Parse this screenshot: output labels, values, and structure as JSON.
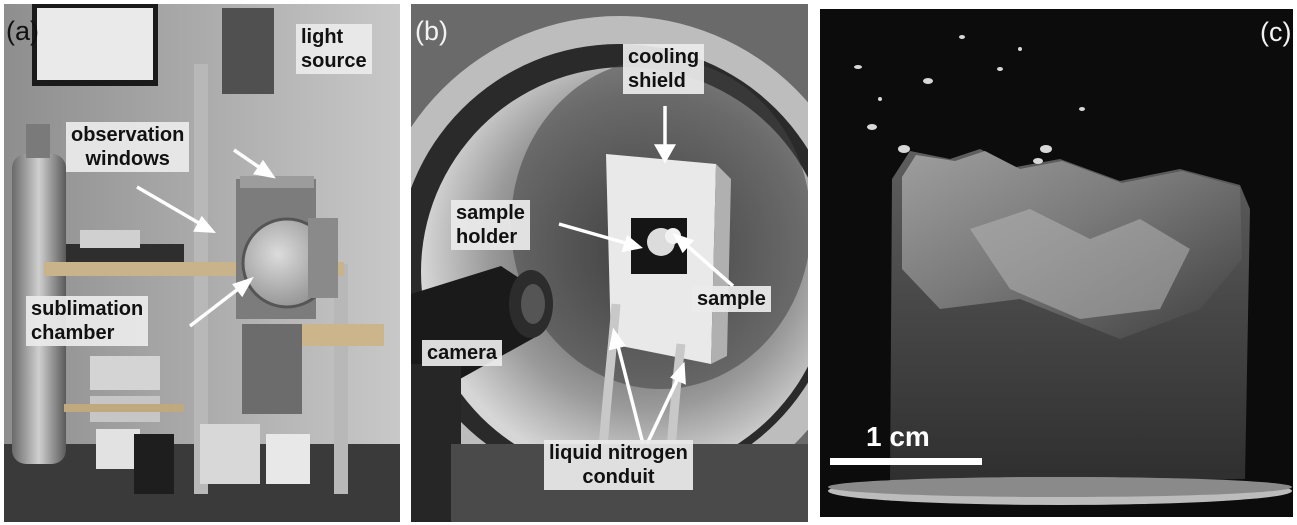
{
  "panels": {
    "a": {
      "label": "(a)",
      "annotations": {
        "light_source": [
          "light",
          "source"
        ],
        "observation_windows": [
          "observation",
          "windows"
        ],
        "sublimation_chamber": [
          "sublimation",
          "chamber"
        ]
      }
    },
    "b": {
      "label": "(b)",
      "annotations": {
        "cooling_shield": [
          "cooling",
          "shield"
        ],
        "sample_holder": [
          "sample",
          "holder"
        ],
        "sample": "sample",
        "camera": "camera",
        "liquid_nitrogen_conduit": [
          "liquid nitrogen",
          "conduit"
        ]
      }
    },
    "c": {
      "label": "(c)",
      "scale_bar": "1 cm"
    }
  },
  "colors": {
    "label_bg": "#ebebeb",
    "arrow": "#ffffff"
  }
}
